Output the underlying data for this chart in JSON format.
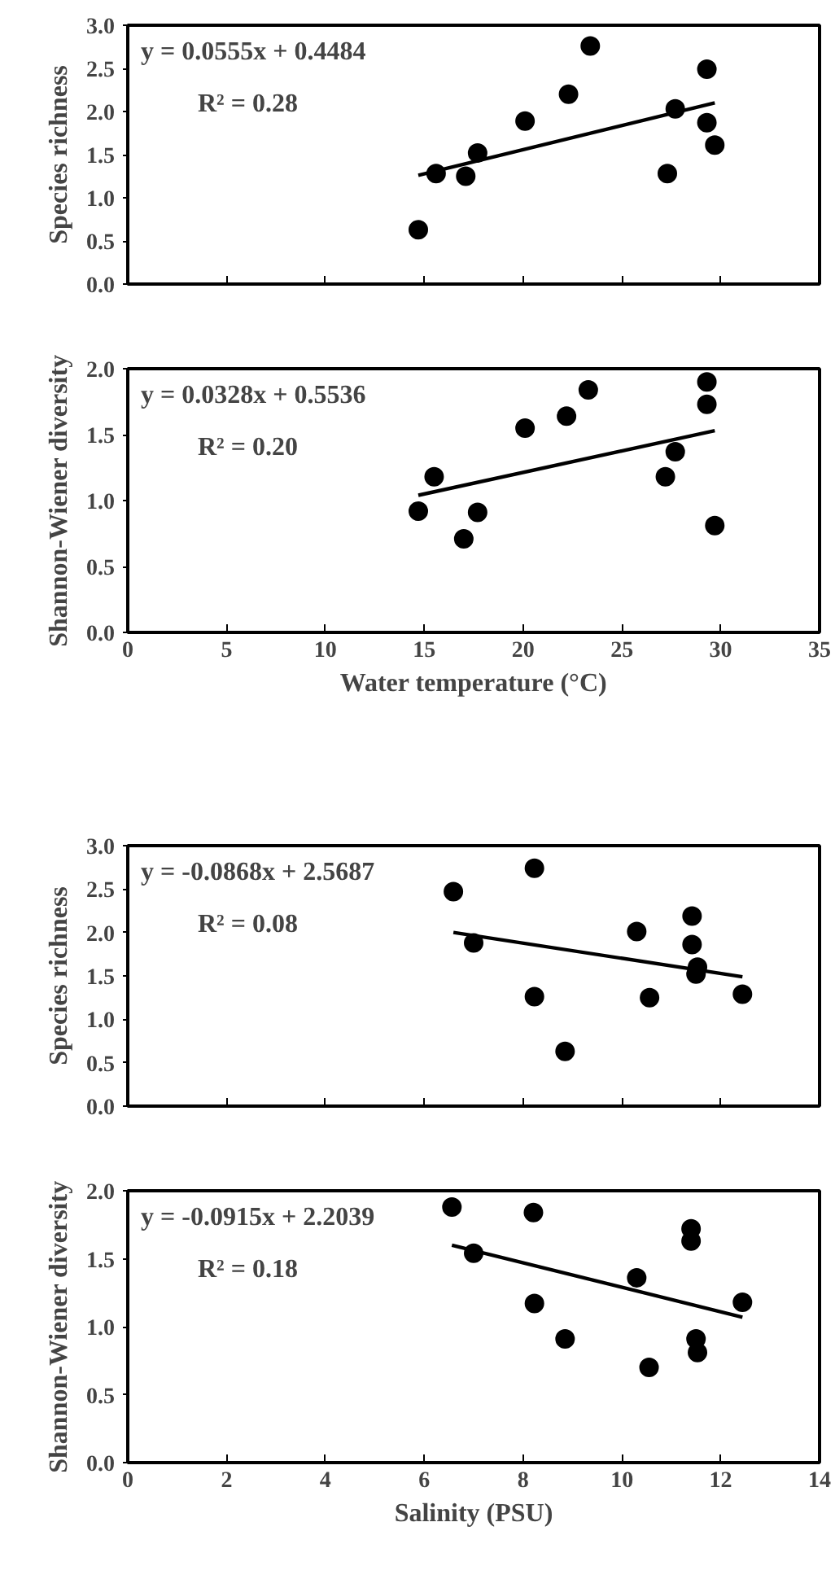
{
  "chart_data": [
    {
      "type": "scatter",
      "ylabel": "Species richness",
      "xlim": [
        0,
        35
      ],
      "xticks": [
        0,
        5,
        10,
        15,
        20,
        25,
        30,
        35
      ],
      "ylim": [
        0,
        3
      ],
      "yticks": [
        {
          "value": 0,
          "label": "0.0"
        },
        {
          "value": 0.5,
          "label": "0.5"
        },
        {
          "value": 1,
          "label": "1.0"
        },
        {
          "value": 1.5,
          "label": "1.5"
        },
        {
          "value": 2,
          "label": "2.0"
        },
        {
          "value": 2.5,
          "label": "2.5"
        },
        {
          "value": 3,
          "label": "3.0"
        }
      ],
      "tick_labels": "y",
      "grid": false,
      "annotations": [
        "y = 0.0555x + 0.4484",
        "R² = 0.28"
      ],
      "series": [
        {
          "color": "#000000",
          "marker": "circle",
          "x": [
            14.7,
            15.6,
            17.1,
            17.7,
            20.1,
            22.3,
            23.4,
            27.3,
            27.7,
            29.3,
            29.3,
            29.7
          ],
          "values": [
            0.63,
            1.28,
            1.25,
            1.52,
            1.89,
            2.2,
            2.76,
            1.28,
            2.03,
            2.49,
            1.87,
            1.61
          ]
        },
        {
          "type": "line",
          "color": "#000000",
          "marker": "none",
          "x": [
            14.7,
            29.7
          ],
          "values": [
            1.26,
            2.1
          ]
        }
      ]
    },
    {
      "type": "scatter",
      "ylabel": "Shannon-Wiener diversity",
      "xlabel": "Water temperature (°C)",
      "xlim": [
        0,
        35
      ],
      "xticks": [
        0,
        5,
        10,
        15,
        20,
        25,
        30,
        35
      ],
      "ylim": [
        0,
        2
      ],
      "yticks": [
        {
          "value": 0,
          "label": "0.0"
        },
        {
          "value": 0.5,
          "label": "0.5"
        },
        {
          "value": 1,
          "label": "1.0"
        },
        {
          "value": 1.5,
          "label": "1.5"
        },
        {
          "value": 2,
          "label": "2.0"
        }
      ],
      "grid": false,
      "annotations": [
        "y = 0.0328x + 0.5536",
        "R² = 0.20"
      ],
      "series": [
        {
          "color": "#000000",
          "marker": "circle",
          "x": [
            14.7,
            15.5,
            17.0,
            17.7,
            20.1,
            22.2,
            23.3,
            27.2,
            27.7,
            29.3,
            29.3,
            29.7
          ],
          "values": [
            0.92,
            1.18,
            0.71,
            0.91,
            1.55,
            1.64,
            1.84,
            1.18,
            1.37,
            1.9,
            1.73,
            0.81
          ]
        },
        {
          "type": "line",
          "color": "#000000",
          "marker": "none",
          "x": [
            14.7,
            29.7
          ],
          "values": [
            1.04,
            1.53
          ]
        }
      ]
    },
    {
      "type": "scatter",
      "ylabel": "Species richness",
      "xlim": [
        0,
        14
      ],
      "xticks": [
        0,
        2,
        4,
        6,
        8,
        10,
        12,
        14
      ],
      "ylim": [
        0,
        3
      ],
      "yticks": [
        {
          "value": 0,
          "label": "0.0"
        },
        {
          "value": 0.5,
          "label": "0.5"
        },
        {
          "value": 1,
          "label": "1.0"
        },
        {
          "value": 1.5,
          "label": "1.5"
        },
        {
          "value": 2,
          "label": "2.0"
        },
        {
          "value": 2.5,
          "label": "2.5"
        },
        {
          "value": 3,
          "label": "3.0"
        }
      ],
      "tick_labels": "y",
      "grid": false,
      "annotations": [
        "y = -0.0868x + 2.5687",
        "R² = 0.08"
      ],
      "series": [
        {
          "color": "#000000",
          "marker": "circle",
          "x": [
            6.59,
            7.0,
            8.23,
            8.23,
            8.85,
            10.3,
            10.56,
            11.42,
            11.42,
            11.53,
            11.5,
            12.44
          ],
          "values": [
            2.47,
            1.88,
            2.74,
            1.26,
            0.63,
            2.01,
            1.25,
            2.19,
            1.86,
            1.6,
            1.52,
            1.29
          ]
        },
        {
          "type": "line",
          "color": "#000000",
          "marker": "none",
          "x": [
            6.59,
            12.44
          ],
          "values": [
            2.0,
            1.49
          ]
        }
      ]
    },
    {
      "type": "scatter",
      "ylabel": "Shannon-Wiener diversity",
      "xlabel": "Salinity (PSU)",
      "xlim": [
        0,
        14
      ],
      "xticks": [
        0,
        2,
        4,
        6,
        8,
        10,
        12,
        14
      ],
      "ylim": [
        0,
        2
      ],
      "yticks": [
        {
          "value": 0,
          "label": "0.0"
        },
        {
          "value": 0.5,
          "label": "0.5"
        },
        {
          "value": 1,
          "label": "1.0"
        },
        {
          "value": 1.5,
          "label": "1.5"
        },
        {
          "value": 2,
          "label": "2.0"
        }
      ],
      "grid": false,
      "annotations": [
        "y = -0.0915x + 2.2039",
        "R² = 0.18"
      ],
      "series": [
        {
          "color": "#000000",
          "marker": "circle",
          "x": [
            6.56,
            7.0,
            8.21,
            8.23,
            8.85,
            10.3,
            10.55,
            11.4,
            11.4,
            11.5,
            11.53,
            12.44
          ],
          "values": [
            1.88,
            1.54,
            1.84,
            1.17,
            0.91,
            1.36,
            0.7,
            1.72,
            1.63,
            0.91,
            0.81,
            1.18
          ]
        },
        {
          "type": "line",
          "color": "#000000",
          "marker": "none",
          "x": [
            6.56,
            12.44
          ],
          "values": [
            1.6,
            1.07
          ]
        }
      ]
    }
  ]
}
